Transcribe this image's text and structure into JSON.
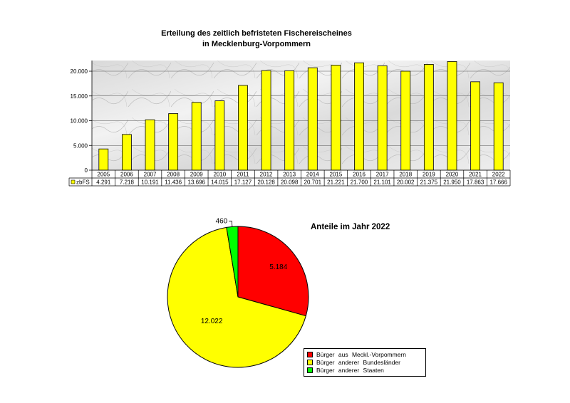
{
  "chart_data": [
    {
      "type": "bar",
      "title_line1": "Erteilung des zeitlich befristeten Fischereischeines",
      "title_line2": "in Mecklenburg-Vorpommern",
      "categories": [
        "2005",
        "2006",
        "2007",
        "2008",
        "2009",
        "2010",
        "2011",
        "2012",
        "2013",
        "2014",
        "2015",
        "2016",
        "2017",
        "2018",
        "2019",
        "2020",
        "2021",
        "2022"
      ],
      "series": [
        {
          "name": "zbFS",
          "color": "#ffff00",
          "values": [
            4291,
            7218,
            10191,
            11436,
            13696,
            14015,
            17127,
            20128,
            20098,
            20701,
            21221,
            21700,
            21101,
            20002,
            21375,
            21950,
            17863,
            17666
          ],
          "value_labels": [
            "4.291",
            "7.218",
            "10.191",
            "11.436",
            "13.696",
            "14.015",
            "17.127",
            "20.128",
            "20.098",
            "20.701",
            "21.221",
            "21.700",
            "21.101",
            "20.002",
            "21.375",
            "21.950",
            "17.863",
            "17.666"
          ]
        }
      ],
      "ylim": [
        0,
        20000
      ],
      "yticks": [
        0,
        5000,
        10000,
        15000,
        20000
      ],
      "ytick_labels": [
        "0",
        "5.000",
        "10.000",
        "15.000",
        "20.000"
      ],
      "grid": true,
      "data_table": true
    },
    {
      "type": "pie",
      "title": "Anteile im Jahr 2022",
      "slices": [
        {
          "label": "Bürger  aus  Meckl.-Vorpommern",
          "value": 5184,
          "value_label": "5.184",
          "color": "#ff0000"
        },
        {
          "label": "Bürger  anderer  Bundesländer",
          "value": 12022,
          "value_label": "12.022",
          "color": "#ffff00"
        },
        {
          "label": "Bürger  anderer  Staaten",
          "value": 460,
          "value_label": "460",
          "color": "#00ff00"
        }
      ],
      "legend_position": "bottom-right"
    }
  ]
}
